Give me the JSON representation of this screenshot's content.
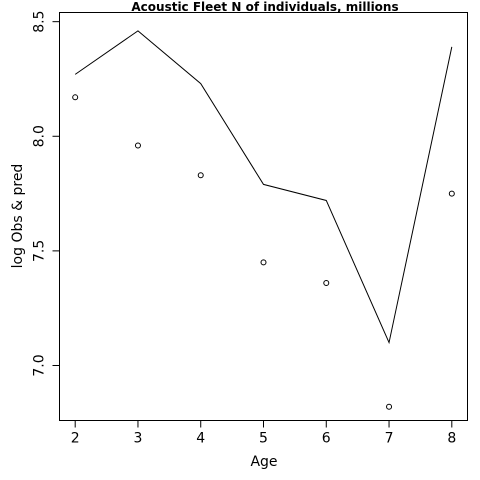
{
  "chart_data": {
    "type": "line",
    "title": "Acoustic Fleet   N of individuals, millions",
    "xlabel": "Age",
    "ylabel": "log Obs & pred",
    "x": [
      2,
      3,
      4,
      5,
      6,
      7,
      8
    ],
    "xticks": [
      "2",
      "3",
      "4",
      "5",
      "6",
      "7",
      "8"
    ],
    "yticks": [
      "7.0",
      "7.5",
      "8.0",
      "8.5"
    ],
    "xlim": [
      1.75,
      8.25
    ],
    "ylim": [
      6.76,
      8.54
    ],
    "series": [
      {
        "kind": "line",
        "values": [
          8.27,
          8.46,
          8.23,
          7.79,
          7.72,
          7.1,
          8.39
        ]
      },
      {
        "kind": "points",
        "values": [
          8.17,
          7.96,
          7.83,
          7.45,
          7.36,
          6.82,
          7.75
        ]
      }
    ],
    "grid": false,
    "legend": "none"
  }
}
